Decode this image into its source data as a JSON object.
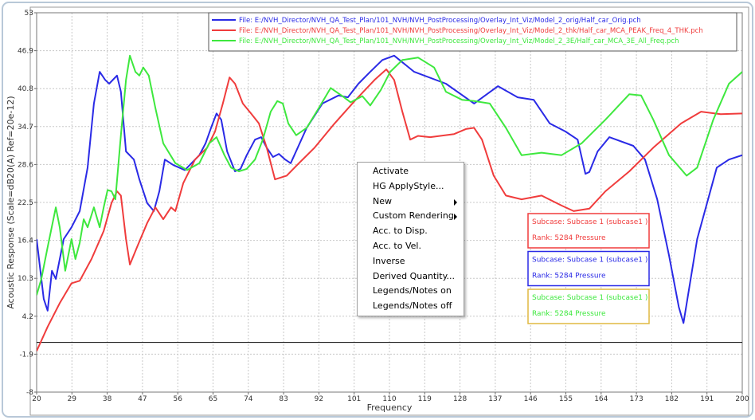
{
  "chart_data": {
    "type": "line",
    "xlabel": "Frequency",
    "ylabel": "Acoustic Response (Scale=dB20(A) Ref=20e-12)",
    "xlim": [
      20,
      200
    ],
    "ylim": [
      -8,
      53
    ],
    "xticks": [
      20,
      29,
      38,
      47,
      56,
      65,
      74,
      83,
      92,
      101,
      110,
      119,
      128,
      137,
      146,
      155,
      164,
      173,
      182,
      191,
      200
    ],
    "yticks": [
      -8,
      -1.9,
      4.2,
      10.3,
      16.4,
      22.5,
      28.6,
      34.7,
      40.8,
      46.9,
      53
    ],
    "grid": true,
    "hline": 0,
    "series": [
      {
        "name": "File: E:/NVH_Director/NVH_QA_Test_Plan/101_NVH/NVH_PostProcessing/Overlay_Int_Viz/Model_2_orig/Half_car_Orig.pch",
        "color": "#2a2ae6",
        "x": [
          20.0,
          21.8,
          22.8,
          23.9,
          24.9,
          26.9,
          28.9,
          31.0,
          33.0,
          34.6,
          36.1,
          37.5,
          38.5,
          40.5,
          41.5,
          42.8,
          44.8,
          46.2,
          48.2,
          49.9,
          51.3,
          52.7,
          54.9,
          57.8,
          61.5,
          63.1,
          64.5,
          65.9,
          67.1,
          68.6,
          70.6,
          72.0,
          73.6,
          75.7,
          77.3,
          78.7,
          80.3,
          81.8,
          83.4,
          84.8,
          88.9,
          92.9,
          97.0,
          99.4,
          102.1,
          105.1,
          108.2,
          111.2,
          116.3,
          124.4,
          131.6,
          137.7,
          142.7,
          146.8,
          150.9,
          154.9,
          158.0,
          160.0,
          161.0,
          163.1,
          166.1,
          172.2,
          175.2,
          178.3,
          181.3,
          183.8,
          185.0,
          188.5,
          193.5,
          196.6,
          200.0
        ],
        "values": [
          16.6,
          7.0,
          5.1,
          11.5,
          10.2,
          16.6,
          18.5,
          21.1,
          28.1,
          38.4,
          43.5,
          42.2,
          41.6,
          42.9,
          40.3,
          30.7,
          29.4,
          26.2,
          22.4,
          21.1,
          24.3,
          29.4,
          28.5,
          27.7,
          30.1,
          32.0,
          34.5,
          36.8,
          35.8,
          30.7,
          27.5,
          27.9,
          30.1,
          32.6,
          33.0,
          31.3,
          29.8,
          30.3,
          29.4,
          28.8,
          34.5,
          38.4,
          39.7,
          39.4,
          41.6,
          43.5,
          45.4,
          46.1,
          43.5,
          41.6,
          38.4,
          41.2,
          39.4,
          39.0,
          35.2,
          33.9,
          32.6,
          27.1,
          27.4,
          30.7,
          33.0,
          31.6,
          29.4,
          23.0,
          14.0,
          5.7,
          3.1,
          16.6,
          28.1,
          29.4,
          30.1
        ]
      },
      {
        "name": "File: E:/NVH_Director/NVH_QA_Test_Plan/101_NVH/NVH_PostProcessing/Overlay_Int_Viz/Model_2_thk/Half_car_MCA_PEAK_Freq_4_THK.pch",
        "color": "#f03c3c",
        "x": [
          20.0,
          22.8,
          25.9,
          28.9,
          31.0,
          34.0,
          37.1,
          39.1,
          40.5,
          41.5,
          42.8,
          43.8,
          45.6,
          48.2,
          50.3,
          52.3,
          54.3,
          55.4,
          57.4,
          60.4,
          63.5,
          65.5,
          67.5,
          69.2,
          70.6,
          72.6,
          74.7,
          76.7,
          78.7,
          80.8,
          83.8,
          86.9,
          90.9,
          96.0,
          101.1,
          106.2,
          109.2,
          111.2,
          113.3,
          115.3,
          117.3,
          120.4,
          126.5,
          129.5,
          131.6,
          133.6,
          136.6,
          139.7,
          143.7,
          148.8,
          153.9,
          157.0,
          161.0,
          165.1,
          171.2,
          177.3,
          184.4,
          189.5,
          194.5,
          200.0
        ],
        "values": [
          -1.4,
          2.5,
          6.3,
          9.5,
          9.9,
          13.4,
          17.9,
          22.4,
          24.3,
          23.6,
          16.6,
          12.5,
          15.3,
          19.2,
          21.7,
          19.8,
          21.7,
          21.1,
          25.6,
          29.4,
          31.3,
          33.9,
          38.4,
          42.6,
          41.6,
          38.4,
          36.8,
          35.2,
          31.3,
          26.2,
          26.8,
          28.8,
          31.3,
          35.2,
          38.8,
          42.2,
          43.9,
          42.2,
          37.1,
          32.6,
          33.2,
          33.0,
          33.5,
          34.3,
          34.5,
          32.6,
          26.8,
          23.6,
          23.0,
          23.6,
          22.0,
          21.1,
          21.5,
          24.3,
          27.5,
          31.3,
          35.2,
          37.1,
          36.7,
          36.8
        ]
      },
      {
        "name": "File: E:/NVH_Director/NVH_QA_Test_Plan/101_NVH/NVH_PostProcessing/Overlay_Int_Viz/Model_2_3E/Half_car_MCA_3E_All_Freq.pch",
        "color": "#3ee83e",
        "x": [
          20.0,
          21.2,
          22.8,
          24.9,
          25.9,
          27.3,
          28.9,
          29.9,
          31.0,
          32.0,
          33.0,
          34.6,
          36.1,
          37.1,
          38.1,
          39.1,
          40.1,
          41.5,
          42.8,
          43.8,
          45.2,
          46.2,
          47.2,
          48.6,
          50.3,
          52.3,
          55.4,
          58.4,
          61.5,
          64.0,
          65.9,
          67.9,
          69.6,
          71.6,
          73.6,
          75.7,
          77.7,
          79.7,
          81.4,
          82.8,
          84.2,
          86.2,
          88.9,
          92.0,
          95.0,
          98.0,
          100.1,
          103.1,
          105.1,
          107.8,
          110.2,
          113.3,
          117.3,
          121.4,
          124.4,
          128.5,
          131.6,
          135.6,
          139.7,
          143.7,
          148.8,
          153.9,
          159.0,
          165.1,
          171.2,
          174.2,
          177.3,
          181.3,
          185.8,
          188.5,
          192.6,
          196.6,
          200.0
        ],
        "values": [
          7.6,
          10.2,
          15.3,
          21.7,
          18.5,
          11.5,
          16.6,
          13.4,
          16.0,
          19.8,
          18.5,
          21.7,
          18.5,
          21.7,
          24.5,
          24.3,
          23.0,
          33.3,
          42.2,
          46.1,
          43.5,
          42.9,
          44.2,
          42.9,
          37.7,
          32.0,
          28.8,
          27.7,
          28.8,
          32.0,
          33.0,
          30.1,
          28.1,
          27.5,
          27.9,
          29.4,
          32.6,
          37.1,
          38.8,
          38.4,
          35.2,
          33.3,
          34.5,
          37.7,
          40.9,
          39.6,
          38.6,
          39.6,
          38.1,
          40.6,
          43.5,
          45.4,
          45.8,
          44.2,
          40.3,
          39.0,
          38.8,
          38.4,
          34.5,
          30.1,
          30.5,
          30.1,
          32.0,
          35.8,
          39.9,
          39.7,
          35.8,
          30.1,
          26.8,
          28.1,
          35.8,
          41.6,
          43.5
        ]
      }
    ]
  },
  "notes": [
    {
      "lines": [
        "Subcase: Subcase 1 (subcase1 )",
        "Rank: 5284 Pressure"
      ],
      "color": "#f03c3c",
      "border": "#f03c3c"
    },
    {
      "lines": [
        "Subcase: Subcase 1 (subcase1 )",
        "Rank: 5284 Pressure"
      ],
      "color": "#2a2ae6",
      "border": "#2a2ae6"
    },
    {
      "lines": [
        "Subcase: Subcase 1 (subcase1 )",
        "Rank: 5284 Pressure"
      ],
      "color": "#3ee83e",
      "border": "#e0b840"
    }
  ],
  "context_menu": {
    "items": [
      "Activate",
      "HG ApplyStyle...",
      "New",
      "Custom Rendering",
      "Acc. to Disp.",
      "Acc. to Vel.",
      "Inverse",
      "Derived Quantity...",
      "Legends/Notes on",
      "Legends/Notes off"
    ]
  }
}
